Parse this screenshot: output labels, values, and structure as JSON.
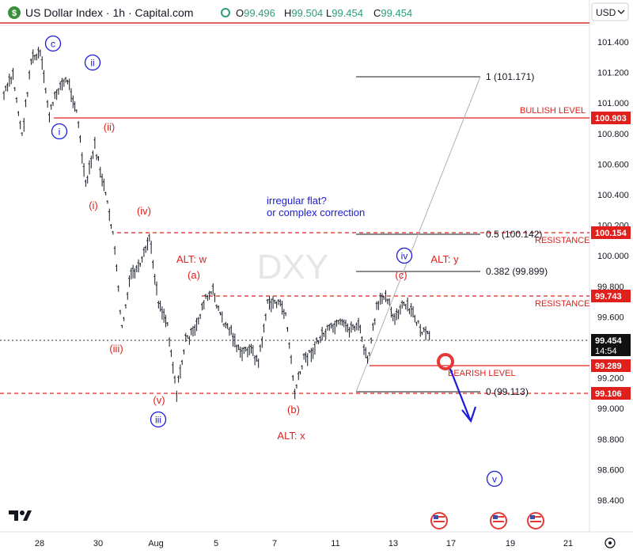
{
  "header": {
    "logo_symbol": "$",
    "title": "US Dollar Index · 1h · Capital.com",
    "ohlc": [
      {
        "label": "O",
        "value": "99.496"
      },
      {
        "label": "H",
        "value": "99.504"
      },
      {
        "label": "L",
        "value": "99.454"
      },
      {
        "label": "C",
        "value": "99.454"
      }
    ],
    "currency": "USD",
    "currency_icon": "chevron-down-icon"
  },
  "watermark": "DXY",
  "logo": "TV",
  "colors": {
    "red": "#e0201c",
    "blue": "#1a1adc",
    "price_label_bg": "#111111",
    "border_red": "#d32f2f"
  },
  "chart_data": {
    "type": "line",
    "title": "US Dollar Index · 1h · Capital.com",
    "ylim": [
      98.28,
      101.52
    ],
    "y_ticks": [
      "101.400",
      "101.200",
      "101.000",
      "100.800",
      "100.600",
      "100.400",
      "100.200",
      "100.000",
      "99.800",
      "99.600",
      "99.400",
      "99.200",
      "99.000",
      "98.800",
      "98.600",
      "98.400"
    ],
    "x_ticks": [
      "28",
      "30",
      "Aug",
      "5",
      "7",
      "11",
      "13",
      "17",
      "19",
      "21"
    ],
    "series": [
      {
        "values": [
          101.05,
          101.18,
          100.78,
          101.28,
          101.32,
          100.92,
          101.1,
          101.15,
          100.95,
          100.45,
          100.72,
          100.45,
          100.15,
          99.52,
          99.88,
          99.92,
          100.12,
          99.7,
          99.55,
          99.1,
          99.45,
          99.5,
          99.7,
          99.76,
          99.58,
          99.5,
          99.35,
          99.4,
          99.3,
          99.68,
          99.7,
          99.62,
          99.1,
          99.32,
          99.38,
          99.48,
          99.52,
          99.55,
          99.52,
          99.55,
          99.3,
          99.65,
          99.76,
          99.58,
          99.68,
          99.62,
          99.5,
          99.454
        ]
      }
    ],
    "levels": [
      {
        "label": "BULLISH LEVEL",
        "value": "100.903"
      },
      {
        "label": "RESISTANCE",
        "value": "100.154"
      },
      {
        "label": "RESISTANCE",
        "value": "99.743"
      },
      {
        "label": "",
        "value": "99.454",
        "time": "14:54"
      },
      {
        "label": "BEARISH LEVEL",
        "value": "99.289"
      },
      {
        "label": "",
        "value": "99.106"
      }
    ],
    "fib": [
      {
        "text": "1 (101.171)"
      },
      {
        "text": "0.5 (100.142)"
      },
      {
        "text": "0.382 (99.899)"
      },
      {
        "text": "0 (99.113)"
      }
    ],
    "wave_labels": {
      "blue": [
        "c",
        "ii",
        "i",
        "iv",
        "iii",
        "v"
      ],
      "red": [
        "(ii)",
        "(i)",
        "(iv)",
        "(iii)",
        "(v)",
        "(a)",
        "(b)",
        "(c)"
      ],
      "alt": [
        "ALT: w",
        "ALT: y",
        "ALT: x"
      ]
    },
    "note": [
      "irregular flat?",
      "or complex correction"
    ],
    "event_icons": [
      "us-flag-icon",
      "us-flag-icon",
      "us-flag-icon",
      "us-flag-icon"
    ]
  }
}
